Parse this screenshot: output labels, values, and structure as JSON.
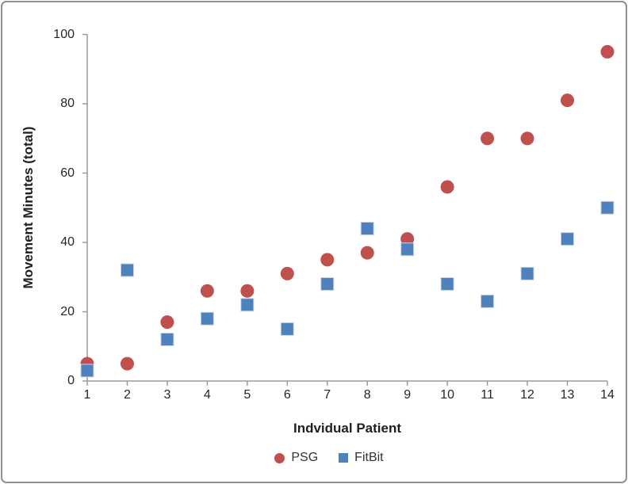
{
  "chart_data": {
    "type": "scatter",
    "title": "",
    "xlabel": "Indvidual Patient",
    "ylabel": "Movement Minutes (total)",
    "x": [
      1,
      2,
      3,
      4,
      5,
      6,
      7,
      8,
      9,
      10,
      11,
      12,
      13,
      14
    ],
    "series": [
      {
        "name": "PSG",
        "marker": "circle",
        "color": "#C0504D",
        "values": [
          5,
          5,
          17,
          26,
          26,
          31,
          35,
          37,
          41,
          56,
          70,
          70,
          81,
          95
        ]
      },
      {
        "name": "FitBit",
        "marker": "square",
        "color": "#4F81BD",
        "marker_border_color": "#C6D5E8",
        "values": [
          3,
          32,
          12,
          18,
          22,
          15,
          28,
          44,
          38,
          28,
          23,
          31,
          41,
          50
        ]
      }
    ],
    "xlim": [
      1,
      14
    ],
    "ylim": [
      0,
      100
    ],
    "xticks": [
      1,
      2,
      3,
      4,
      5,
      6,
      7,
      8,
      9,
      10,
      11,
      12,
      13,
      14
    ],
    "yticks": [
      0,
      20,
      40,
      60,
      80,
      100
    ],
    "grid": false,
    "legend_position": "bottom",
    "axis_color": "#9B9B9B",
    "tick_text_color": "#262626",
    "frame_border_color": "#8F8F8F",
    "background_color": "#FFFFFF"
  }
}
